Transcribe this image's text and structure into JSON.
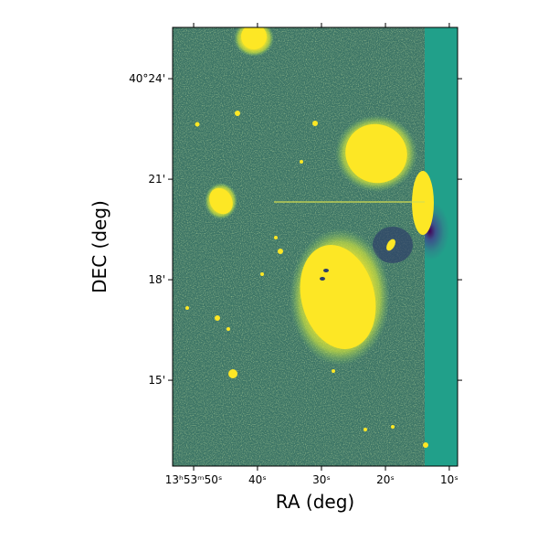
{
  "chart_data": {
    "type": "image",
    "xlabel": "RA (deg)",
    "ylabel": "DEC (deg)",
    "xlim": [
      208.472,
      208.2863
    ],
    "ylim": [
      40.2073,
      40.4255
    ],
    "xticks": [
      {
        "value": 208.4583,
        "label": "13ʰ53ᵐ50ˢ"
      },
      {
        "value": 208.4167,
        "label": "40ˢ"
      },
      {
        "value": 208.375,
        "label": "30ˢ"
      },
      {
        "value": 208.3333,
        "label": "20ˢ"
      },
      {
        "value": 208.2917,
        "label": "10ˢ"
      }
    ],
    "yticks": [
      {
        "value": 40.25,
        "label": "15'"
      },
      {
        "value": 40.3,
        "label": "18'"
      },
      {
        "value": 40.35,
        "label": "21'"
      },
      {
        "value": 40.4,
        "label": "40°24'"
      }
    ]
  }
}
